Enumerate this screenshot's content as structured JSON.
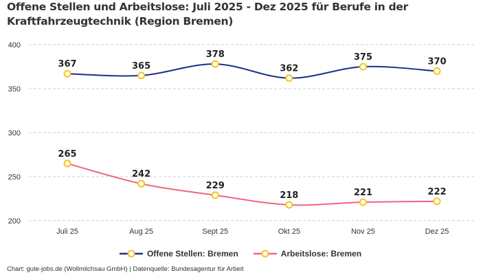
{
  "chart_data": {
    "type": "line",
    "title": "Offene Stellen und Arbeitslose: Juli 2025 - Dez 2025 für Berufe in der Kraftfahrzeugtechnik (Region Bremen)",
    "categories": [
      "Juli 25",
      "Aug 25",
      "Sept 25",
      "Okt 25",
      "Nov 25",
      "Dez 25"
    ],
    "series": [
      {
        "name": "Offene Stellen: Bremen",
        "values": [
          367,
          365,
          378,
          362,
          375,
          370
        ],
        "color": "#1a2f8c"
      },
      {
        "name": "Arbeitslose: Bremen",
        "values": [
          265,
          242,
          229,
          218,
          221,
          222
        ],
        "color": "#f2647e"
      }
    ],
    "marker_color": "#f5c518",
    "ylim": [
      200,
      400
    ],
    "yticks": [
      200,
      250,
      300,
      350,
      400
    ],
    "grid": true,
    "legend": "bottom",
    "xlabel": "",
    "ylabel": ""
  },
  "footer": "Chart: gute-jobs.de (Wollmilchsau GmbH) | Datenquelle: Bundesagentur für Arbeit"
}
